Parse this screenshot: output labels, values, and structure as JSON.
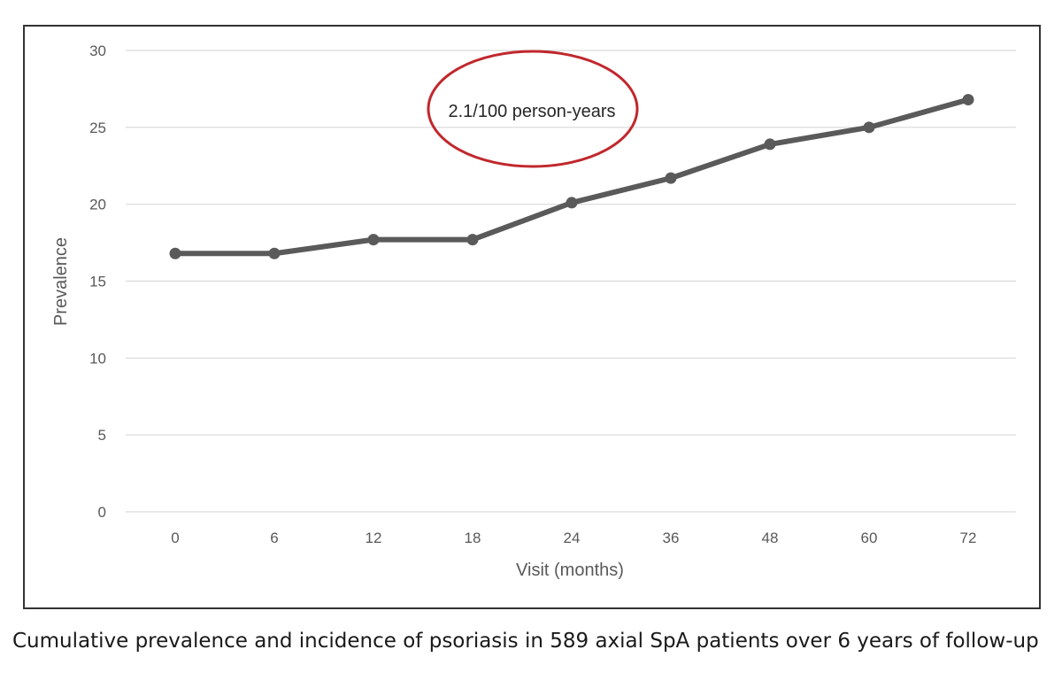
{
  "chart_data": {
    "type": "line",
    "categories": [
      "0",
      "6",
      "12",
      "18",
      "24",
      "36",
      "48",
      "60",
      "72"
    ],
    "series": [
      {
        "values": [
          16.8,
          16.8,
          17.7,
          17.7,
          20.1,
          21.7,
          23.9,
          25.0,
          26.8
        ]
      }
    ],
    "xlabel": "Visit (months)",
    "ylabel": "Prevalence",
    "ylim": [
      0,
      30
    ],
    "yticks": [
      0,
      5,
      10,
      15,
      20,
      25,
      30
    ],
    "grid": "horizontal",
    "annotation": {
      "text": "2.1/100 person-years",
      "shape": "ellipse"
    },
    "colors": {
      "line": "#5a5a5a",
      "grid": "#d9d9d9",
      "annotation_outline": "#c0282d"
    }
  },
  "caption": "Cumulative prevalence and incidence of psoriasis in 589 axial SpA patients over 6 years of follow-up"
}
